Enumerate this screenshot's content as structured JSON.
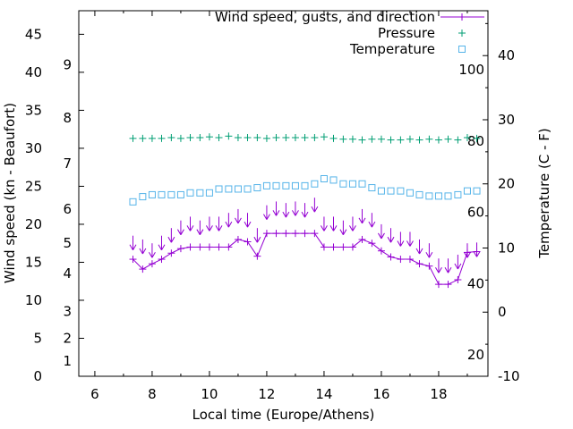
{
  "chart_data": {
    "type": "line",
    "title": "",
    "xlabel": "Local time (Europe/Athens)",
    "ylabel_left": "Wind speed (kn - Beaufort)",
    "ylabel_right": "Temperature (C - F)",
    "x_range": [
      5.44,
      19.72
    ],
    "y_left_range_kn": [
      0,
      48.1
    ],
    "y_right_range_c": [
      -10,
      47
    ],
    "x_ticks": [
      6,
      8,
      10,
      12,
      14,
      16,
      18
    ],
    "x_minor_ticks": [
      7,
      9,
      11,
      13,
      15,
      17,
      19
    ],
    "y_ticks_kn": [
      0,
      5,
      10,
      15,
      20,
      25,
      30,
      35,
      40,
      45
    ],
    "beaufort_labels": [
      {
        "label": "1",
        "kn": 2
      },
      {
        "label": "2",
        "kn": 5
      },
      {
        "label": "3",
        "kn": 8.5
      },
      {
        "label": "4",
        "kn": 13.5
      },
      {
        "label": "5",
        "kn": 17.5
      },
      {
        "label": "6",
        "kn": 22
      },
      {
        "label": "7",
        "kn": 28
      },
      {
        "label": "8",
        "kn": 34
      },
      {
        "label": "9",
        "kn": 41
      }
    ],
    "y2_ticks_c": [
      -10,
      0,
      10,
      20,
      30,
      40
    ],
    "fahrenheit_labels": [
      {
        "label": "20",
        "f": 20
      },
      {
        "label": "40",
        "f": 40
      },
      {
        "label": "60",
        "f": 60
      },
      {
        "label": "80",
        "f": 80
      },
      {
        "label": "100",
        "f": 100
      }
    ],
    "legend": [
      {
        "label": "Wind speed, gusts, and direction",
        "series": "wind",
        "marker": "plus-line"
      },
      {
        "label": "Pressure",
        "series": "pressure",
        "marker": "plus"
      },
      {
        "label": "Temperature",
        "series": "temperature",
        "marker": "square"
      }
    ],
    "colors": {
      "wind": "#9400d3",
      "pressure": "#009e73",
      "temperature": "#56b4e9",
      "axis": "#000000",
      "background": "#ffffff"
    },
    "arrow_direction_deg": 180,
    "series": {
      "time": [
        7.33,
        7.67,
        8,
        8.33,
        8.67,
        9,
        9.33,
        9.67,
        10,
        10.33,
        10.67,
        11,
        11.33,
        11.67,
        12,
        12.33,
        12.67,
        13,
        13.33,
        13.67,
        14,
        14.33,
        14.67,
        15,
        15.33,
        15.67,
        16,
        16.33,
        16.67,
        17,
        17.33,
        17.67,
        18,
        18.33,
        18.67,
        19,
        19.33
      ],
      "wind_speed_kn": [
        15.4,
        14.1,
        14.8,
        15.4,
        16.2,
        16.8,
        17,
        17,
        17,
        17,
        17,
        18,
        17.7,
        15.8,
        18.8,
        18.8,
        18.8,
        18.8,
        18.8,
        18.8,
        17,
        17,
        17,
        17,
        18,
        17.5,
        16.5,
        15.7,
        15.4,
        15.4,
        14.8,
        14.5,
        12.1,
        12.1,
        12.7,
        16.3,
        16.4
      ],
      "gust_kn": [
        18.5,
        18,
        17.5,
        18.5,
        19.5,
        20.5,
        21,
        20.5,
        21,
        21,
        21.5,
        22,
        21.5,
        19.5,
        22.5,
        23,
        22.8,
        23,
        22.8,
        23.5,
        21,
        21,
        20.5,
        21,
        22,
        21.5,
        20,
        19.5,
        19,
        19,
        18,
        17.5,
        15.5,
        15.5,
        16,
        17.5,
        17.6
      ],
      "temperature_c": [
        17.2,
        18,
        18.3,
        18.3,
        18.3,
        18.3,
        18.6,
        18.6,
        18.6,
        19.2,
        19.2,
        19.2,
        19.2,
        19.4,
        19.7,
        19.7,
        19.7,
        19.7,
        19.7,
        20,
        20.8,
        20.6,
        20,
        20,
        20,
        19.4,
        18.9,
        18.9,
        18.9,
        18.6,
        18.3,
        18.1,
        18.1,
        18.1,
        18.3,
        18.9,
        18.9
      ],
      "pressure_plot_kn_scale": [
        31.3,
        31.3,
        31.3,
        31.3,
        31.4,
        31.3,
        31.4,
        31.4,
        31.5,
        31.4,
        31.6,
        31.4,
        31.4,
        31.4,
        31.3,
        31.4,
        31.4,
        31.4,
        31.4,
        31.4,
        31.5,
        31.3,
        31.2,
        31.2,
        31.1,
        31.2,
        31.2,
        31.1,
        31.1,
        31.2,
        31.1,
        31.2,
        31.1,
        31.2,
        31.1,
        31.4,
        31.3
      ]
    }
  }
}
